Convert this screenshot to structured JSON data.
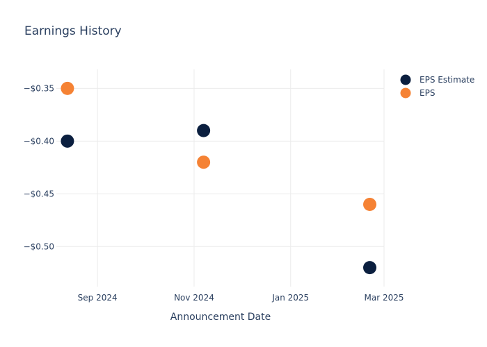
{
  "chart_data": {
    "type": "scatter",
    "title": "Earnings History",
    "xlabel": "Announcement Date",
    "ylabel": "",
    "x_ticks": [
      {
        "date": "2024-09-01",
        "label": "Sep 2024"
      },
      {
        "date": "2024-11-01",
        "label": "Nov 2024"
      },
      {
        "date": "2025-01-01",
        "label": "Jan 2025"
      },
      {
        "date": "2025-03-01",
        "label": "Mar 2025"
      }
    ],
    "y_ticks": [
      {
        "value": -0.35,
        "label": "−$0.35"
      },
      {
        "value": -0.4,
        "label": "−$0.40"
      },
      {
        "value": -0.45,
        "label": "−$0.45"
      },
      {
        "value": -0.5,
        "label": "−$0.50"
      }
    ],
    "xlim": [
      "2024-08-06",
      "2025-03-01"
    ],
    "ylim": [
      -0.538,
      -0.332
    ],
    "grid": true,
    "legend_position": "top-right",
    "series": [
      {
        "name": "EPS Estimate",
        "color": "#0b1f3f",
        "points": [
          {
            "x": "2024-08-13",
            "y": -0.4
          },
          {
            "x": "2024-11-07",
            "y": -0.39
          },
          {
            "x": "2025-02-20",
            "y": -0.52
          }
        ]
      },
      {
        "name": "EPS",
        "color": "#f58234",
        "points": [
          {
            "x": "2024-08-13",
            "y": -0.35
          },
          {
            "x": "2024-11-07",
            "y": -0.42
          },
          {
            "x": "2025-02-20",
            "y": -0.46
          }
        ]
      }
    ]
  }
}
